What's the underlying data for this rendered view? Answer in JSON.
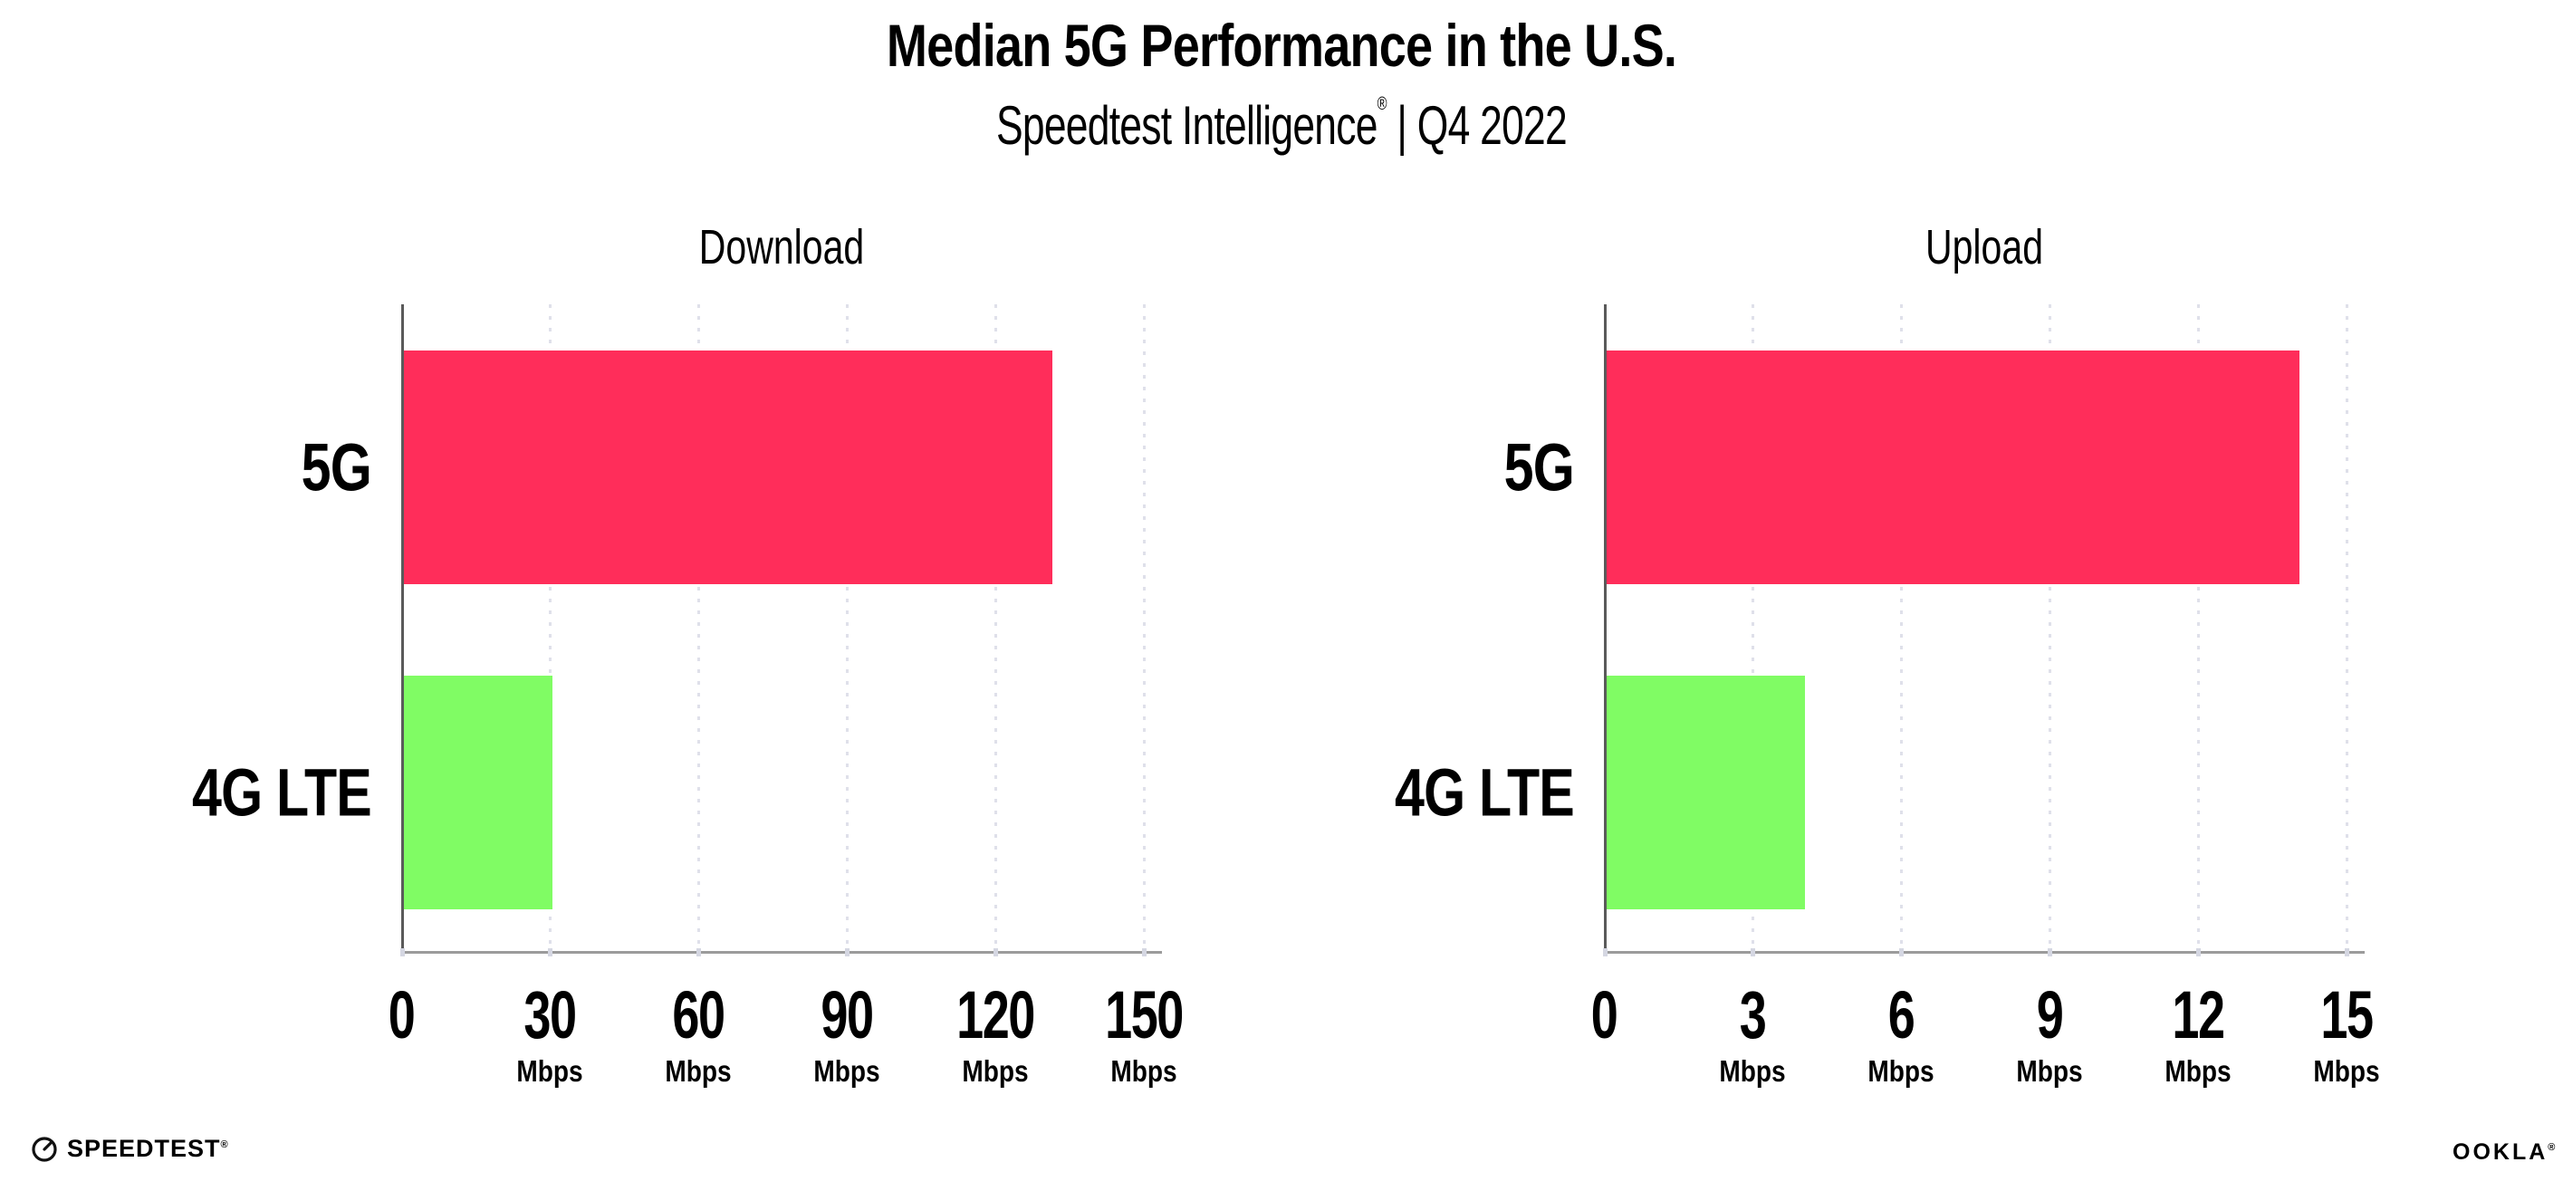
{
  "header": {
    "title": "Median 5G Performance in the U.S.",
    "subtitle_brand": "Speedtest Intelligence",
    "subtitle_reg": "®",
    "subtitle_rest": " | Q4 2022"
  },
  "colors": {
    "bar_5g": "#ff2d5a",
    "bar_4g_lte": "#80fc64",
    "y_axis_line": "#5a5a5a",
    "x_axis_line": "#9b9b9b",
    "gridline": "#dfe0ea",
    "text": "#000000"
  },
  "chart_data": [
    {
      "type": "bar",
      "orientation": "horizontal",
      "title": "Download",
      "categories": [
        "5G",
        "4G LTE"
      ],
      "values": [
        131,
        30
      ],
      "bar_colors": [
        "#ff2d5a",
        "#80fc64"
      ],
      "unit": "Mbps",
      "xlim": [
        0,
        150
      ],
      "xticks": [
        0,
        30,
        60,
        90,
        120,
        150
      ],
      "xtick_unit_label": "Mbps",
      "grid": "vertical-dotted",
      "legend": "none"
    },
    {
      "type": "bar",
      "orientation": "horizontal",
      "title": "Upload",
      "categories": [
        "5G",
        "4G LTE"
      ],
      "values": [
        14,
        4
      ],
      "bar_colors": [
        "#ff2d5a",
        "#80fc64"
      ],
      "unit": "Mbps",
      "xlim": [
        0,
        15
      ],
      "xticks": [
        0,
        3,
        6,
        9,
        12,
        15
      ],
      "xtick_unit_label": "Mbps",
      "grid": "vertical-dotted",
      "legend": "none"
    }
  ],
  "footer": {
    "speedtest_label": "SPEEDTEST",
    "speedtest_reg": "®",
    "ookla_label": "OOKLA",
    "ookla_reg": "®"
  }
}
